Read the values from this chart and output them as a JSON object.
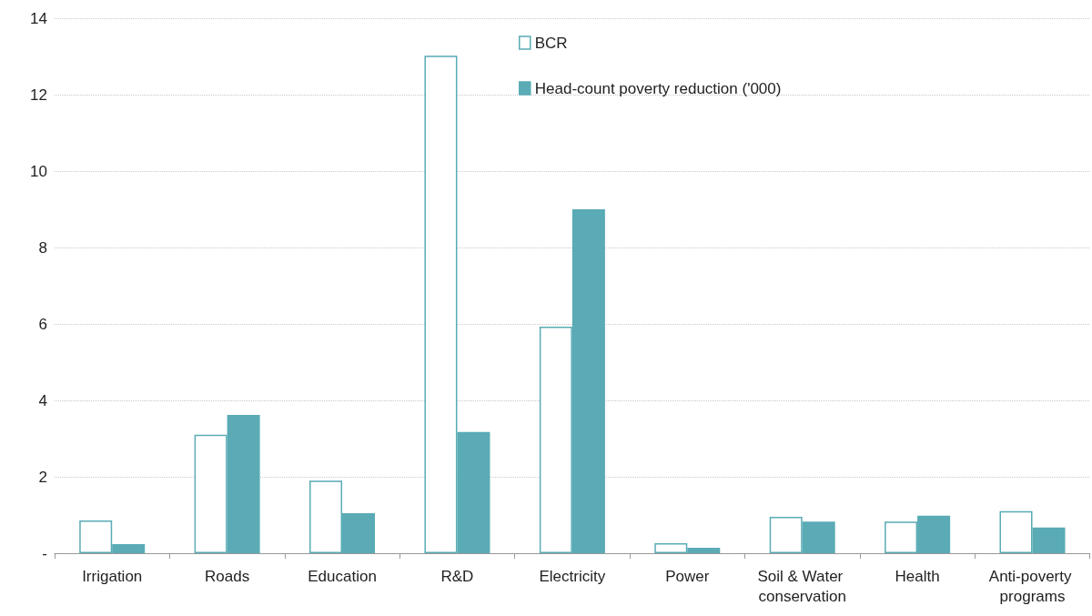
{
  "chart_data": {
    "type": "bar",
    "categories": [
      "Irrigation",
      "Roads",
      "Education",
      "R&D",
      "Electricity",
      "Power",
      "Soil & Water conservation",
      "Health",
      "Anti-poverty programs"
    ],
    "series": [
      {
        "name": "BCR",
        "color": "#ffffff",
        "values": [
          0.86,
          3.1,
          1.9,
          13.02,
          5.93,
          0.26,
          0.95,
          0.83,
          1.1
        ]
      },
      {
        "name": "Head-count poverty reduction ('000)",
        "color": "#5aabb5",
        "values": [
          0.24,
          3.62,
          1.05,
          3.17,
          9.0,
          0.14,
          0.83,
          0.98,
          0.67
        ]
      }
    ],
    "ylim": [
      0,
      14
    ],
    "yticks": [
      {
        "value": 0,
        "label": "-"
      },
      2,
      4,
      6,
      8,
      10,
      12,
      14
    ],
    "grid": "y",
    "legend": "top"
  }
}
